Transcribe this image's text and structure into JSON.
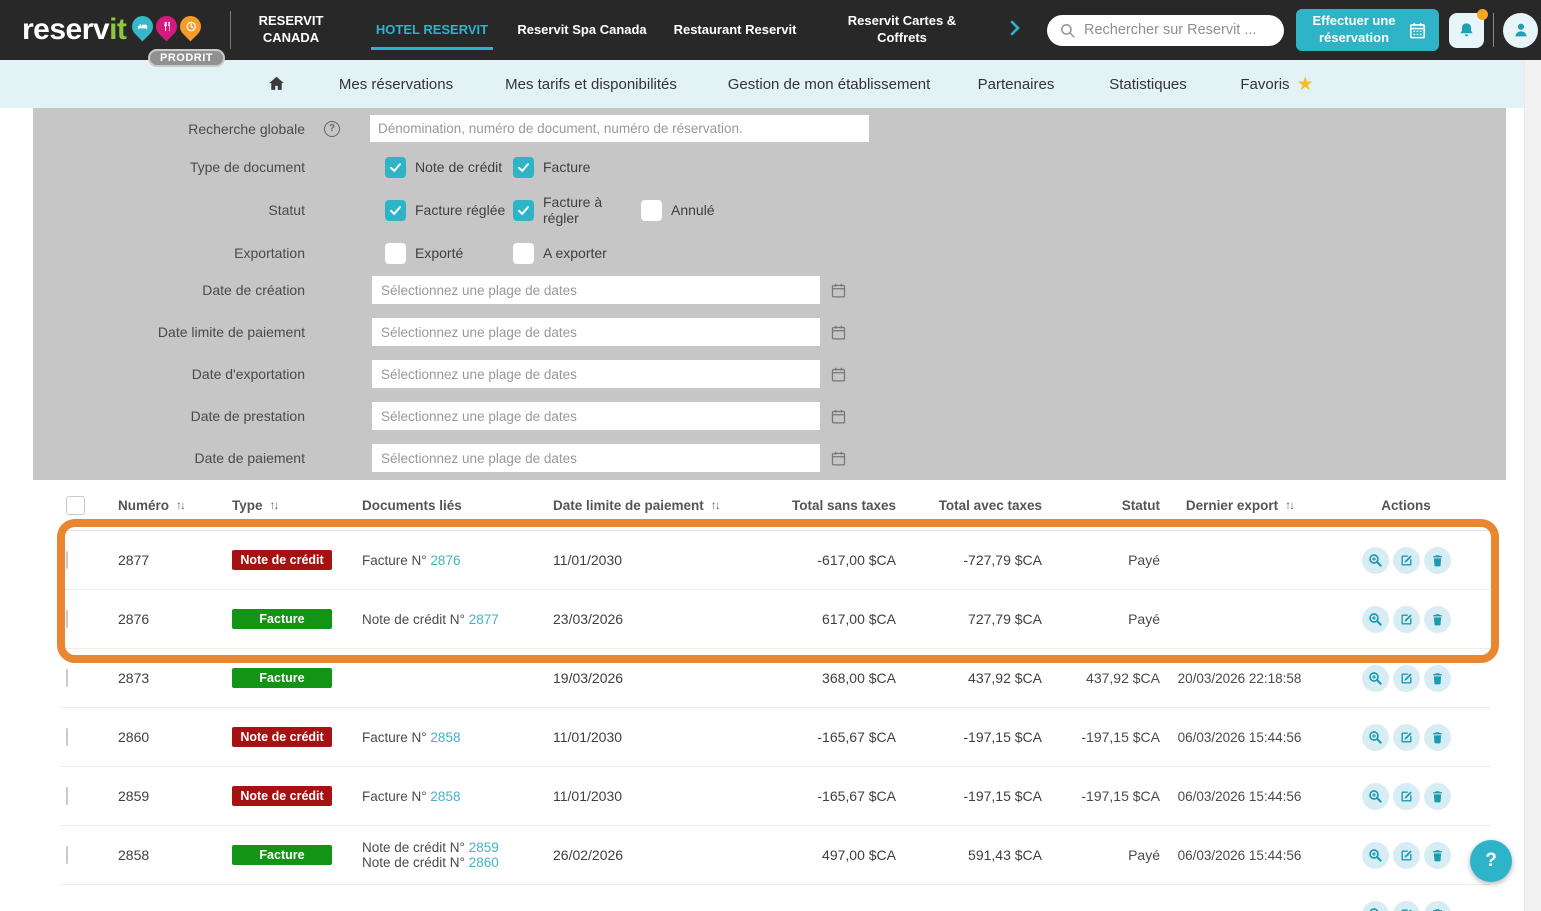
{
  "topbar": {
    "logo": {
      "brand": "reserv",
      "brand_suffix": "it",
      "badge": "PRODRIT"
    },
    "nav_items": [
      {
        "label": "RESERVIT CANADA",
        "active": false
      },
      {
        "label": "HOTEL RESERVIT",
        "active": true
      },
      {
        "label": "Reservit Spa Canada",
        "active": false
      },
      {
        "label": "Restaurant Reservit",
        "active": false
      },
      {
        "label": "Reservit Cartes & Coffrets",
        "active": false
      }
    ],
    "search": {
      "placeholder": "Rechercher sur Reservit ..."
    },
    "reserve_button_label": "Effectuer une réservation"
  },
  "subnav": {
    "star_glyph": "★",
    "items": [
      {
        "label": "Mes réservations",
        "star": false
      },
      {
        "label": "Mes tarifs et disponibilités",
        "star": false
      },
      {
        "label": "Gestion de mon établissement",
        "star": false
      },
      {
        "label": "Partenaires",
        "star": false
      },
      {
        "label": "Statistiques",
        "star": false
      },
      {
        "label": "Favoris",
        "star": true
      }
    ]
  },
  "filters": {
    "search_label": "Recherche globale",
    "help_glyph": "?",
    "search_placeholder": "Dénomination, numéro de document, numéro de réservation.",
    "document_type": {
      "label": "Type de document",
      "options": [
        {
          "label": "Note de crédit",
          "checked": true
        },
        {
          "label": "Facture",
          "checked": true
        }
      ]
    },
    "statut": {
      "label": "Statut",
      "options": [
        {
          "label": "Facture réglée",
          "checked": true
        },
        {
          "label": "Facture à régler",
          "checked": true
        },
        {
          "label": "Annulé",
          "checked": false
        }
      ]
    },
    "exportation": {
      "label": "Exportation",
      "options": [
        {
          "label": "Exporté",
          "checked": false
        },
        {
          "label": "A exporter",
          "checked": false
        }
      ]
    },
    "date_placeholder": "Sélectionnez une plage de dates",
    "date_fields": [
      "Date de création",
      "Date limite de paiement",
      "Date d'exportation",
      "Date de prestation",
      "Date de paiement"
    ]
  },
  "table": {
    "sort_icon": "↑↓",
    "columns": [
      {
        "label": "Numéro",
        "sortable": true
      },
      {
        "label": "Type",
        "sortable": true
      },
      {
        "label": "Documents liés",
        "sortable": false
      },
      {
        "label": "Date limite de paiement",
        "sortable": true
      },
      {
        "label": "Total sans taxes",
        "sortable": false
      },
      {
        "label": "Total avec taxes",
        "sortable": false
      },
      {
        "label": "Statut",
        "sortable": false
      },
      {
        "label": "Dernier export",
        "sortable": true
      },
      {
        "label": "Actions",
        "sortable": false
      }
    ],
    "rows": [
      {
        "numero": "2877",
        "type": "Note de crédit",
        "type_kind": "credit",
        "docs": [
          {
            "prefix": "Facture N° ",
            "link": "2876"
          }
        ],
        "date_limite": "11/01/2030",
        "total_sans_taxes": "-617,00 $CA",
        "total_avec_taxes": "-727,79 $CA",
        "statut": "Payé",
        "dernier_export": "",
        "highlighted": true
      },
      {
        "numero": "2876",
        "type": "Facture",
        "type_kind": "facture",
        "docs": [
          {
            "prefix": "Note de crédit N° ",
            "link": "2877"
          }
        ],
        "date_limite": "23/03/2026",
        "total_sans_taxes": "617,00 $CA",
        "total_avec_taxes": "727,79 $CA",
        "statut": "Payé",
        "dernier_export": "",
        "highlighted": true
      },
      {
        "numero": "2873",
        "type": "Facture",
        "type_kind": "facture",
        "docs": [],
        "date_limite": "19/03/2026",
        "total_sans_taxes": "368,00 $CA",
        "total_avec_taxes": "437,92 $CA",
        "statut": "437,92 $CA",
        "dernier_export": "20/03/2026 22:18:58",
        "highlighted": false
      },
      {
        "numero": "2860",
        "type": "Note de crédit",
        "type_kind": "credit",
        "docs": [
          {
            "prefix": "Facture N° ",
            "link": "2858"
          }
        ],
        "date_limite": "11/01/2030",
        "total_sans_taxes": "-165,67 $CA",
        "total_avec_taxes": "-197,15 $CA",
        "statut": "-197,15 $CA",
        "dernier_export": "06/03/2026 15:44:56",
        "highlighted": false
      },
      {
        "numero": "2859",
        "type": "Note de crédit",
        "type_kind": "credit",
        "docs": [
          {
            "prefix": "Facture N° ",
            "link": "2858"
          }
        ],
        "date_limite": "11/01/2030",
        "total_sans_taxes": "-165,67 $CA",
        "total_avec_taxes": "-197,15 $CA",
        "statut": "-197,15 $CA",
        "dernier_export": "06/03/2026 15:44:56",
        "highlighted": false
      },
      {
        "numero": "2858",
        "type": "Facture",
        "type_kind": "facture",
        "docs": [
          {
            "prefix": "Note de crédit N° ",
            "link": "2859"
          },
          {
            "prefix": "Note de crédit N° ",
            "link": "2860"
          }
        ],
        "date_limite": "26/02/2026",
        "total_sans_taxes": "497,00 $CA",
        "total_avec_taxes": "591,43 $CA",
        "statut": "Payé",
        "dernier_export": "06/03/2026 15:44:56",
        "highlighted": false
      }
    ]
  },
  "help_button_label": "?",
  "colors": {
    "topbar_bg": "#282828",
    "accent_teal": "#2eb4c6",
    "subnav_bg": "#e3f2f5",
    "panel_bg": "#c6c6c6",
    "badge_credit_red": "#a61212",
    "badge_facture_green": "#149414",
    "link_cyan": "#44b2c4",
    "highlight_orange": "#e8872f",
    "favoris_star_yellow": "#f5c026",
    "notification_dot_orange": "#f5a623",
    "logo_green": "#8dc63f",
    "logo_pin_pink": "#d6197f",
    "logo_pin_orange": "#f49b2a"
  },
  "icons": {
    "search": "magnifier",
    "calendar": "calendar-grid",
    "bell": "notification-bell",
    "avatar": "person-silhouette",
    "home": "house",
    "sort": "up-down-arrows",
    "view": "magnifier-plus",
    "edit": "pencil-square",
    "delete": "trash-can",
    "help": "question-mark-circle"
  }
}
